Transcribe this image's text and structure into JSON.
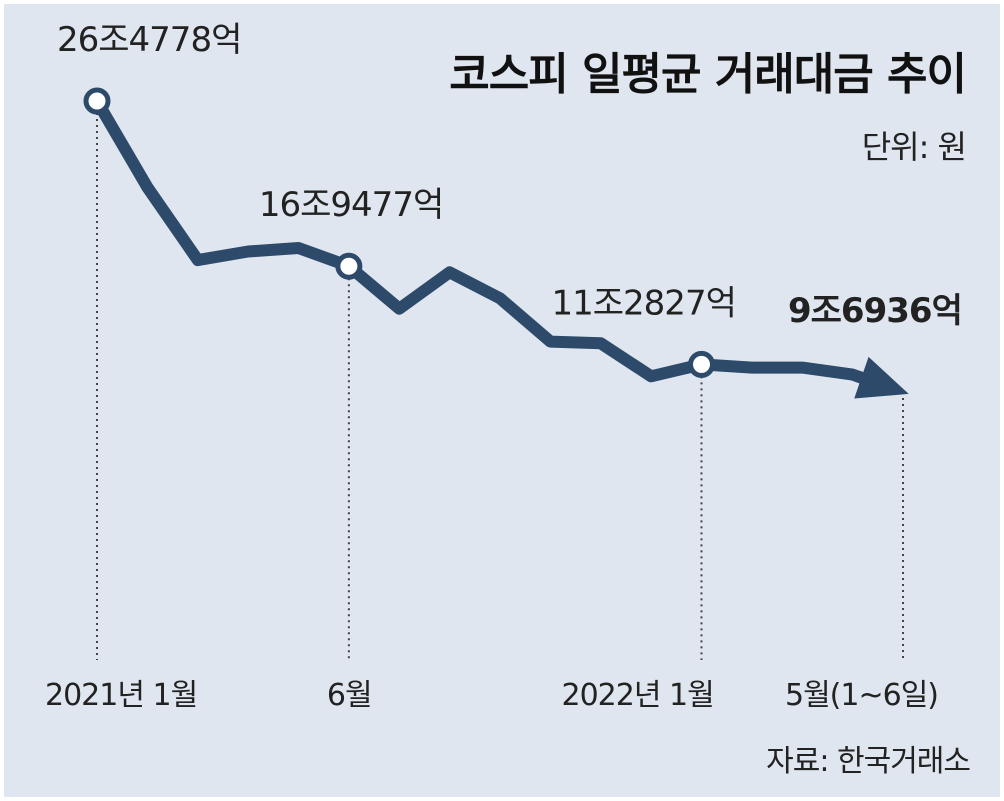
{
  "colors": {
    "background": "#dfe6ef",
    "line": "#2e4a6a",
    "text": "#222222",
    "marker_fill": "#ffffff"
  },
  "chart_data": {
    "type": "line",
    "title": "코스피 일평균 거래대금 추이",
    "unit": "단위: 원",
    "source": "자료: 한국거래소",
    "series": [
      {
        "name": "코스피 일평균 거래대금",
        "values": [
          26.4778,
          21.5,
          17.3,
          17.8,
          18.0,
          16.9477,
          14.5,
          16.6,
          15.1,
          12.6,
          12.5,
          10.6,
          11.2827,
          11.1,
          11.1,
          10.6936,
          9.6936
        ]
      }
    ],
    "x": [
      0,
      1,
      2,
      3,
      4,
      5,
      6,
      7,
      8,
      9,
      10,
      11,
      12,
      13,
      14,
      15,
      16
    ],
    "ylim": [
      0,
      30
    ],
    "annotations": [
      {
        "index": 0,
        "label": "26조4778억",
        "bold": false
      },
      {
        "index": 5,
        "label": "16조9477억",
        "bold": false
      },
      {
        "index": 12,
        "label": "11조2827억",
        "bold": false
      },
      {
        "index": 16,
        "label": "9조6936억",
        "bold": true
      }
    ],
    "x_tick_labels": [
      {
        "index": 0,
        "label": "2021년 1월"
      },
      {
        "index": 5,
        "label": "6월"
      },
      {
        "index": 12,
        "label": "2022년 1월"
      },
      {
        "index": 16,
        "label": "5월(1~6일)"
      }
    ]
  }
}
